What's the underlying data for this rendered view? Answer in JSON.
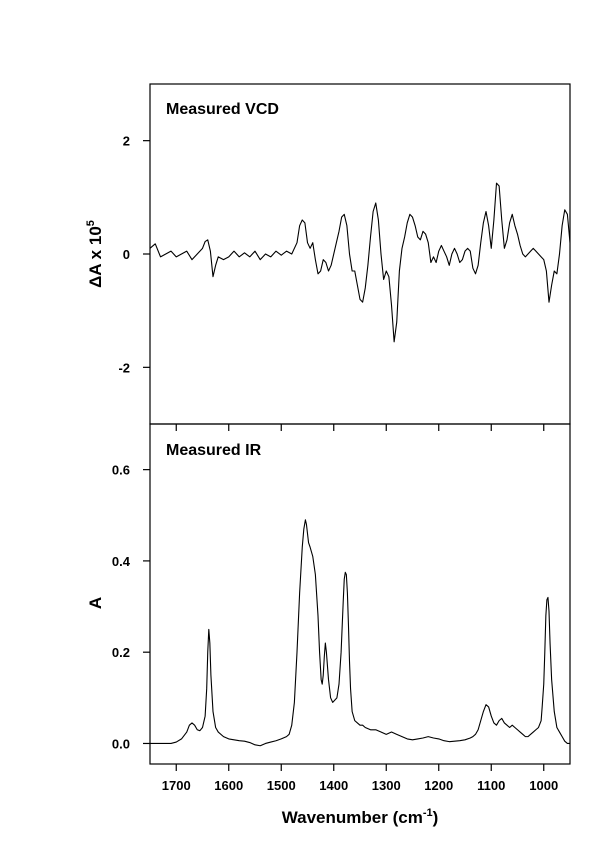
{
  "chart_data": [
    {
      "type": "line",
      "title": "Measured VCD",
      "xlabel": "Wavenumber (cm-1)",
      "ylabel": {
        "main": "ΔA x 10",
        "sup": "5"
      },
      "xlim": [
        1750,
        950
      ],
      "ylim": [
        -3,
        3
      ],
      "yticks": [
        2,
        0,
        -2
      ],
      "ytick_labels": [
        "2",
        "0",
        "-2"
      ],
      "grid": false,
      "series": [
        {
          "x": [
            1750,
            1740,
            1730,
            1720,
            1710,
            1700,
            1690,
            1680,
            1670,
            1660,
            1650,
            1645,
            1640,
            1635,
            1630,
            1625,
            1620,
            1610,
            1600,
            1590,
            1580,
            1570,
            1560,
            1550,
            1540,
            1530,
            1520,
            1510,
            1500,
            1490,
            1480,
            1470,
            1465,
            1460,
            1455,
            1450,
            1445,
            1440,
            1435,
            1430,
            1425,
            1420,
            1415,
            1410,
            1405,
            1400,
            1395,
            1390,
            1385,
            1380,
            1375,
            1370,
            1365,
            1360,
            1355,
            1350,
            1345,
            1340,
            1335,
            1330,
            1325,
            1320,
            1315,
            1310,
            1305,
            1300,
            1295,
            1290,
            1285,
            1280,
            1275,
            1270,
            1265,
            1260,
            1255,
            1250,
            1245,
            1240,
            1235,
            1230,
            1225,
            1220,
            1215,
            1210,
            1205,
            1200,
            1195,
            1190,
            1185,
            1180,
            1175,
            1170,
            1165,
            1160,
            1155,
            1150,
            1145,
            1140,
            1135,
            1130,
            1125,
            1120,
            1115,
            1110,
            1105,
            1100,
            1095,
            1090,
            1085,
            1080,
            1075,
            1070,
            1065,
            1060,
            1055,
            1050,
            1045,
            1040,
            1035,
            1030,
            1025,
            1020,
            1015,
            1010,
            1005,
            1000,
            995,
            990,
            985,
            980,
            975,
            970,
            965,
            960,
            955,
            950
          ],
          "y": [
            0.1,
            0.18,
            -0.05,
            0.0,
            0.05,
            -0.05,
            0.0,
            0.05,
            -0.1,
            0.0,
            0.1,
            0.22,
            0.25,
            0.05,
            -0.4,
            -0.2,
            -0.05,
            -0.1,
            -0.05,
            0.05,
            -0.05,
            0.02,
            -0.05,
            0.05,
            -0.1,
            0.0,
            -0.05,
            0.05,
            -0.02,
            0.05,
            0.0,
            0.2,
            0.5,
            0.6,
            0.55,
            0.2,
            0.1,
            0.2,
            -0.1,
            -0.35,
            -0.3,
            -0.1,
            -0.15,
            -0.3,
            -0.2,
            0.0,
            0.2,
            0.4,
            0.65,
            0.7,
            0.5,
            0.0,
            -0.3,
            -0.3,
            -0.55,
            -0.8,
            -0.85,
            -0.6,
            -0.2,
            0.3,
            0.75,
            0.9,
            0.6,
            0.0,
            -0.45,
            -0.3,
            -0.4,
            -0.9,
            -1.55,
            -1.2,
            -0.3,
            0.1,
            0.3,
            0.55,
            0.7,
            0.65,
            0.5,
            0.3,
            0.25,
            0.4,
            0.35,
            0.2,
            -0.15,
            -0.05,
            -0.15,
            0.05,
            0.15,
            0.05,
            -0.05,
            -0.2,
            0.0,
            0.1,
            0.0,
            -0.15,
            -0.1,
            0.05,
            0.1,
            0.05,
            -0.25,
            -0.35,
            -0.2,
            0.2,
            0.55,
            0.75,
            0.5,
            0.1,
            0.6,
            1.25,
            1.2,
            0.6,
            0.1,
            0.25,
            0.55,
            0.7,
            0.5,
            0.35,
            0.15,
            0.0,
            -0.05,
            0.0,
            0.05,
            0.1,
            0.05,
            0.0,
            -0.05,
            -0.1,
            -0.3,
            -0.85,
            -0.55,
            -0.3,
            -0.35,
            0.0,
            0.5,
            0.78,
            0.7,
            0.2
          ]
        }
      ]
    },
    {
      "type": "line",
      "title": "Measured IR",
      "xlabel": {
        "main": "Wavenumber (cm",
        "sup": "-1",
        "tail": ")"
      },
      "ylabel": "A",
      "xlim": [
        1750,
        950
      ],
      "ylim": [
        -0.045,
        0.7
      ],
      "xticks": [
        1700,
        1600,
        1500,
        1400,
        1300,
        1200,
        1100,
        1000
      ],
      "xtick_labels": [
        "1700",
        "1600",
        "1500",
        "1400",
        "1300",
        "1200",
        "1100",
        "1000"
      ],
      "yticks": [
        0.0,
        0.2,
        0.4,
        0.6
      ],
      "ytick_labels": [
        "0.0",
        "0.2",
        "0.4",
        "0.6"
      ],
      "grid": false,
      "series": [
        {
          "x": [
            1750,
            1740,
            1730,
            1720,
            1710,
            1700,
            1690,
            1680,
            1675,
            1670,
            1665,
            1660,
            1655,
            1650,
            1645,
            1642,
            1640,
            1638,
            1636,
            1634,
            1630,
            1625,
            1620,
            1610,
            1600,
            1590,
            1580,
            1570,
            1560,
            1550,
            1540,
            1530,
            1520,
            1510,
            1500,
            1490,
            1485,
            1480,
            1475,
            1470,
            1465,
            1460,
            1457,
            1454,
            1452,
            1450,
            1448,
            1445,
            1440,
            1435,
            1430,
            1427,
            1424,
            1422,
            1420,
            1418,
            1416,
            1414,
            1410,
            1406,
            1402,
            1398,
            1394,
            1390,
            1386,
            1382,
            1380,
            1378,
            1376,
            1374,
            1372,
            1370,
            1368,
            1365,
            1360,
            1355,
            1350,
            1345,
            1340,
            1330,
            1320,
            1310,
            1300,
            1290,
            1280,
            1270,
            1260,
            1250,
            1240,
            1230,
            1220,
            1210,
            1200,
            1190,
            1180,
            1170,
            1160,
            1150,
            1140,
            1135,
            1130,
            1125,
            1120,
            1115,
            1110,
            1105,
            1100,
            1095,
            1090,
            1085,
            1080,
            1075,
            1070,
            1065,
            1060,
            1055,
            1050,
            1045,
            1040,
            1035,
            1030,
            1025,
            1020,
            1015,
            1010,
            1005,
            1003,
            1000,
            998,
            996,
            994,
            992,
            990,
            988,
            985,
            980,
            975,
            970,
            965,
            960,
            955,
            950
          ],
          "y": [
            0.0,
            0.0,
            0.0,
            0.0,
            0.0,
            0.003,
            0.01,
            0.025,
            0.04,
            0.045,
            0.04,
            0.03,
            0.028,
            0.035,
            0.06,
            0.12,
            0.2,
            0.25,
            0.22,
            0.15,
            0.07,
            0.035,
            0.025,
            0.015,
            0.01,
            0.008,
            0.006,
            0.005,
            0.002,
            -0.003,
            -0.005,
            0.0,
            0.003,
            0.006,
            0.01,
            0.015,
            0.02,
            0.04,
            0.09,
            0.2,
            0.33,
            0.43,
            0.47,
            0.49,
            0.48,
            0.46,
            0.44,
            0.43,
            0.41,
            0.37,
            0.28,
            0.2,
            0.14,
            0.13,
            0.15,
            0.19,
            0.22,
            0.2,
            0.14,
            0.1,
            0.09,
            0.095,
            0.1,
            0.13,
            0.2,
            0.31,
            0.36,
            0.375,
            0.37,
            0.33,
            0.26,
            0.18,
            0.12,
            0.07,
            0.05,
            0.045,
            0.04,
            0.04,
            0.035,
            0.03,
            0.03,
            0.025,
            0.02,
            0.025,
            0.02,
            0.015,
            0.01,
            0.008,
            0.01,
            0.012,
            0.015,
            0.012,
            0.01,
            0.006,
            0.004,
            0.005,
            0.006,
            0.008,
            0.012,
            0.015,
            0.02,
            0.03,
            0.05,
            0.07,
            0.085,
            0.08,
            0.06,
            0.045,
            0.04,
            0.05,
            0.055,
            0.045,
            0.04,
            0.035,
            0.04,
            0.035,
            0.03,
            0.025,
            0.02,
            0.015,
            0.015,
            0.02,
            0.025,
            0.03,
            0.035,
            0.05,
            0.08,
            0.13,
            0.2,
            0.28,
            0.315,
            0.32,
            0.29,
            0.22,
            0.14,
            0.07,
            0.035,
            0.025,
            0.015,
            0.005,
            0.0,
            0.0
          ]
        }
      ]
    }
  ]
}
